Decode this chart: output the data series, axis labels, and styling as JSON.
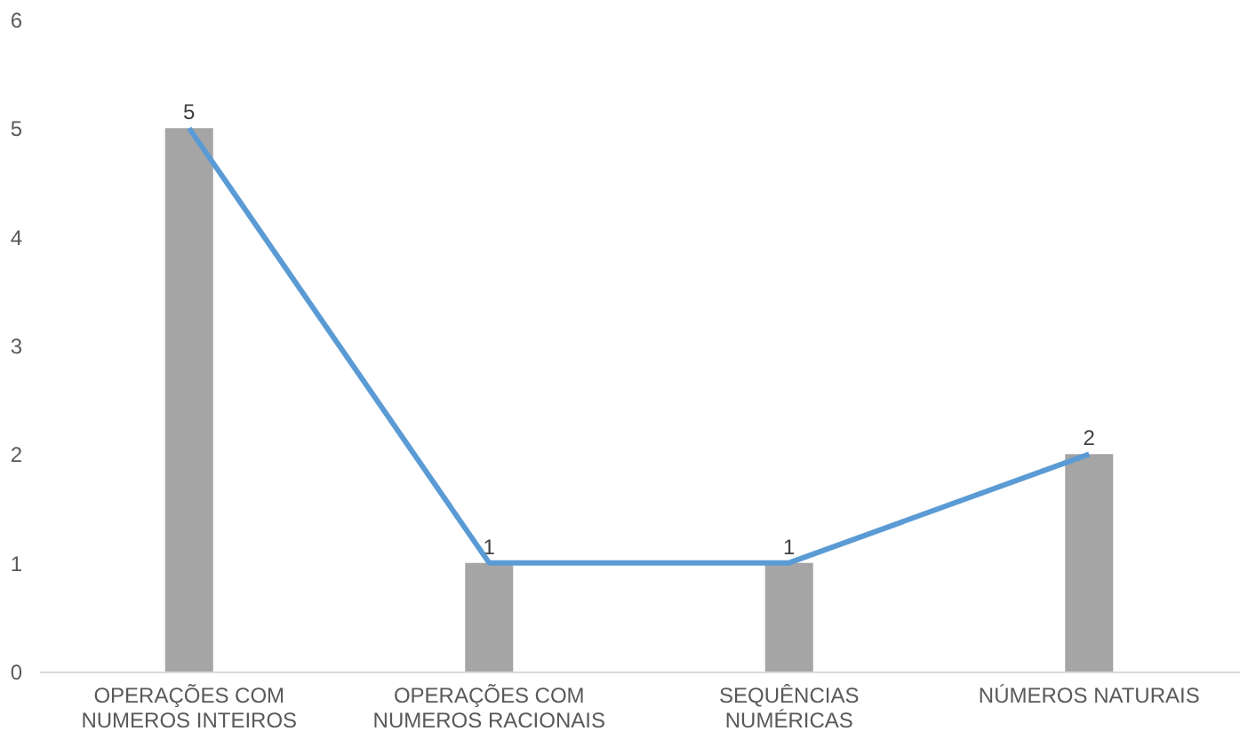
{
  "chart_data": {
    "type": "bar",
    "categories": [
      "OPERAÇÕES COM NUMEROS INTEIROS",
      "OPERAÇÕES COM NUMEROS RACIONAIS",
      "SEQUÊNCIAS NUMÉRICAS",
      "NÚMEROS NATURAIS"
    ],
    "series": [
      {
        "color": "#a5a5a5",
        "values": [
          5,
          1,
          1,
          2
        ],
        "value_labels": [
          "5",
          "1",
          "1",
          "2"
        ]
      },
      {
        "type": "line",
        "color": "#5b9bd5",
        "values": [
          5,
          1,
          1,
          2
        ]
      }
    ],
    "ylim": [
      0,
      6
    ],
    "yticks": [
      0,
      1,
      2,
      3,
      4,
      5,
      6
    ],
    "grid": false,
    "marker": "none"
  }
}
